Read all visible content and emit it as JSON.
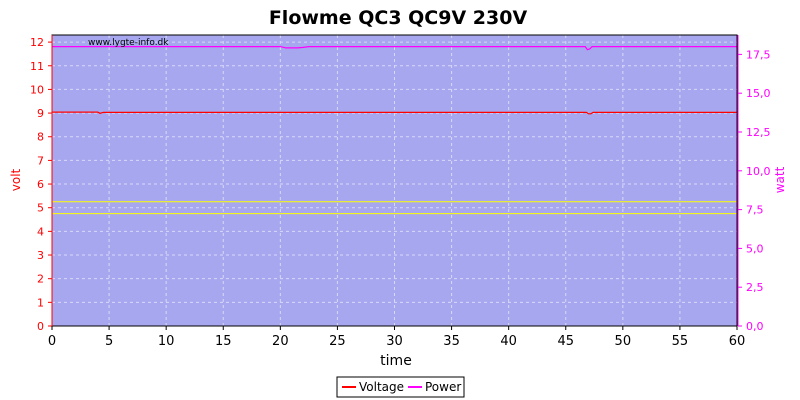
{
  "colors": {
    "plot_bg": "#a7a7ef",
    "grid": "#d8d8f8",
    "voltage": "#ff0000",
    "power": "#ff00ff",
    "ref_lines": "#ffff00",
    "left_axis": "#ff0000",
    "right_axis": "#ff00ff"
  },
  "chart_data": {
    "type": "line",
    "title": "Flowme QC3 QC9V 230V",
    "watermark": "www.lygte-info.dk",
    "xlabel": "time",
    "ylabel_left": "volt",
    "ylabel_right": "watt",
    "xlim": [
      0,
      60
    ],
    "ylim_left": [
      0,
      12.3
    ],
    "ylim_right": [
      0,
      18.75
    ],
    "x_ticks": [
      0,
      5,
      10,
      15,
      20,
      25,
      30,
      35,
      40,
      45,
      50,
      55,
      60
    ],
    "x_tick_labels": [
      "0",
      "5",
      "10",
      "15",
      "20",
      "25",
      "30",
      "35",
      "40",
      "45",
      "50",
      "55",
      "60"
    ],
    "y_left_ticks": [
      0,
      1,
      2,
      3,
      4,
      5,
      6,
      7,
      8,
      9,
      10,
      11,
      12
    ],
    "y_left_tick_labels": [
      "0",
      "1",
      "2",
      "3",
      "4",
      "5",
      "6",
      "7",
      "8",
      "9",
      "10",
      "11",
      "12"
    ],
    "y_right_ticks": [
      0,
      2.5,
      5,
      7.5,
      10,
      12.5,
      15,
      17.5
    ],
    "y_right_tick_labels": [
      "0,0",
      "2,5",
      "5,0",
      "7,5",
      "10,0",
      "12,5",
      "15,0",
      "17,5"
    ],
    "grid": true,
    "legend_position": "bottom-center",
    "reference_lines_left": [
      5.25,
      4.75
    ],
    "series": [
      {
        "name": "Voltage",
        "axis": "left",
        "x": [
          0,
          4.0,
          4.2,
          4.5,
          10,
          20,
          30,
          40,
          46.8,
          47.0,
          47.2,
          47.4,
          52,
          60
        ],
        "y": [
          9.04,
          9.04,
          8.99,
          9.03,
          9.03,
          9.03,
          9.03,
          9.03,
          9.03,
          8.97,
          8.97,
          9.03,
          9.03,
          9.03
        ]
      },
      {
        "name": "Power",
        "axis": "right",
        "x": [
          0,
          10,
          20,
          20.5,
          21.5,
          22.0,
          22.5,
          30,
          40,
          46.7,
          46.9,
          47.1,
          47.3,
          55,
          60
        ],
        "y": [
          18.0,
          18.0,
          18.0,
          17.92,
          17.92,
          17.95,
          18.0,
          18.0,
          18.0,
          18.0,
          17.8,
          17.85,
          18.0,
          18.0,
          18.0
        ]
      }
    ]
  }
}
